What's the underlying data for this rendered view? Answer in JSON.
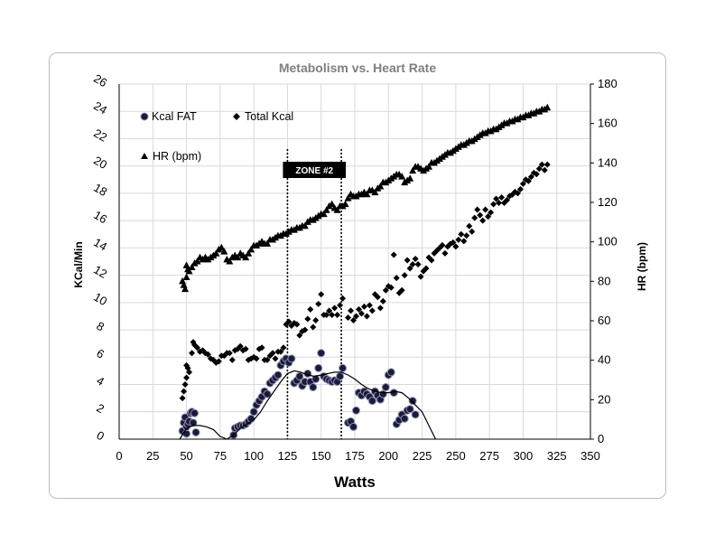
{
  "chart_data": {
    "type": "scatter",
    "title": "Metabolism vs. Heart Rate",
    "xlabel": "Watts",
    "ylabel_left": "KCal/Min",
    "ylabel_right": "HR (bpm)",
    "xlim": [
      0,
      350
    ],
    "x_ticks": [
      0,
      25,
      50,
      75,
      100,
      125,
      150,
      175,
      200,
      225,
      250,
      275,
      300,
      325,
      350
    ],
    "ylim_left": [
      0,
      26
    ],
    "y_ticks_left": [
      0,
      2,
      4,
      6,
      8,
      10,
      12,
      14,
      16,
      18,
      20,
      22,
      24,
      26
    ],
    "ylim_right": [
      0,
      180
    ],
    "y_ticks_right": [
      0,
      20,
      40,
      60,
      80,
      100,
      120,
      140,
      160,
      180
    ],
    "grid": true,
    "legend": "top-left",
    "zone": {
      "label": "ZONE #2",
      "x_start": 125,
      "x_end": 165
    },
    "series": [
      {
        "name": "Kcal FAT",
        "marker": "circle",
        "axis": "left",
        "color": "#1a1a3a",
        "x": [
          47,
          48,
          49,
          50,
          50,
          51,
          52,
          53,
          54,
          55,
          56,
          57,
          85,
          86,
          88,
          90,
          92,
          94,
          96,
          98,
          100,
          102,
          104,
          106,
          108,
          110,
          112,
          114,
          116,
          118,
          120,
          122,
          124,
          126,
          128,
          130,
          132,
          134,
          136,
          138,
          140,
          142,
          144,
          146,
          148,
          150,
          152,
          154,
          156,
          158,
          160,
          162,
          164,
          166,
          170,
          172,
          174,
          176,
          178,
          180,
          182,
          184,
          186,
          188,
          190,
          192,
          194,
          196,
          198,
          200,
          202,
          204,
          206,
          208,
          210,
          212,
          214,
          216,
          218,
          220
        ],
        "y": [
          0.6,
          1.2,
          1.6,
          0.4,
          0.9,
          1.1,
          1.3,
          1.9,
          2.0,
          1.2,
          1.9,
          0.5,
          0.3,
          0.8,
          0.9,
          1.0,
          1.0,
          1.1,
          1.3,
          1.5,
          2.0,
          2.5,
          2.8,
          3.1,
          3.5,
          3.3,
          4.1,
          4.3,
          4.5,
          4.7,
          5.4,
          5.7,
          5.9,
          5.6,
          5.9,
          4.1,
          4.3,
          4.6,
          3.9,
          4.2,
          4.8,
          4.2,
          3.8,
          4.4,
          5.2,
          6.3,
          4.6,
          4.4,
          4.3,
          4.2,
          4.3,
          4.2,
          4.6,
          5.2,
          1.2,
          1.3,
          0.9,
          2.1,
          3.4,
          3.2,
          3.5,
          3.3,
          3.1,
          2.8,
          3.5,
          3.2,
          2.9,
          3.3,
          3.8,
          4.7,
          4.9,
          3.4,
          1.1,
          1.4,
          1.8,
          1.5,
          2.1,
          2.2,
          2.8,
          1.8
        ]
      },
      {
        "name": "Total Kcal",
        "marker": "diamond",
        "axis": "left",
        "color": "#000000",
        "x": [
          47,
          48,
          49,
          50,
          50,
          51,
          52,
          54,
          55,
          56,
          58,
          60,
          62,
          64,
          66,
          68,
          70,
          72,
          74,
          76,
          78,
          80,
          82,
          84,
          86,
          88,
          90,
          92,
          94,
          96,
          98,
          100,
          102,
          104,
          106,
          108,
          110,
          112,
          114,
          116,
          118,
          120,
          122,
          124,
          126,
          128,
          130,
          132,
          134,
          136,
          138,
          140,
          142,
          144,
          146,
          148,
          150,
          152,
          154,
          156,
          158,
          160,
          162,
          164,
          166,
          170,
          172,
          174,
          176,
          178,
          180,
          182,
          184,
          186,
          188,
          190,
          192,
          194,
          196,
          198,
          200,
          202,
          204,
          206,
          208,
          210,
          212,
          214,
          216,
          218,
          220,
          222,
          224,
          226,
          228,
          230,
          232,
          234,
          236,
          238,
          240,
          242,
          244,
          246,
          248,
          250,
          252,
          254,
          256,
          258,
          260,
          262,
          264,
          266,
          268,
          270,
          272,
          274,
          276,
          278,
          280,
          282,
          284,
          286,
          288,
          290,
          292,
          294,
          296,
          298,
          300,
          302,
          304,
          306,
          308,
          310,
          312,
          314,
          316,
          318
        ],
        "y": [
          3.0,
          3.5,
          4.0,
          4.5,
          5.4,
          5.2,
          4.9,
          6.3,
          7.1,
          6.9,
          6.7,
          6.4,
          6.5,
          6.3,
          6.2,
          5.9,
          5.8,
          5.6,
          5.7,
          6.1,
          6.1,
          6.3,
          6.3,
          5.8,
          6.5,
          6.6,
          6.8,
          6.5,
          6.6,
          5.8,
          5.9,
          6.0,
          5.9,
          6.6,
          6.7,
          5.8,
          5.8,
          6.1,
          6.3,
          5.9,
          6.4,
          6.4,
          6.7,
          8.4,
          8.6,
          8.3,
          8.5,
          8.4,
          7.6,
          7.9,
          8.0,
          8.8,
          9.5,
          8.2,
          8.7,
          9.9,
          10.6,
          9.1,
          9.1,
          9.4,
          9.1,
          9.6,
          9.1,
          9.8,
          10.3,
          8.9,
          9.4,
          8.7,
          9.0,
          9.5,
          9.2,
          9.7,
          9.0,
          9.8,
          9.4,
          10.6,
          10.4,
          9.6,
          10.1,
          10.9,
          11.2,
          11.1,
          13.5,
          11.8,
          10.7,
          10.9,
          12.0,
          13.1,
          12.5,
          12.8,
          13.2,
          12.8,
          11.9,
          12.3,
          12.5,
          13.3,
          13.1,
          13.6,
          13.8,
          14.0,
          14.2,
          13.6,
          14.1,
          14.3,
          14.4,
          14.1,
          14.6,
          15.0,
          14.5,
          14.9,
          15.6,
          15.2,
          16.2,
          16.8,
          16.4,
          16.0,
          16.8,
          16.3,
          16.6,
          17.2,
          17.6,
          17.3,
          17.7,
          17.3,
          17.5,
          17.8,
          17.9,
          18.1,
          18.0,
          18.3,
          18.7,
          19.0,
          18.9,
          19.2,
          19.5,
          19.4,
          19.8,
          20.1,
          19.7,
          20.1
        ]
      },
      {
        "name": "HR (bpm)",
        "marker": "triangle",
        "axis": "right",
        "color": "#000000",
        "x": [
          47,
          48,
          49,
          50,
          50,
          51,
          52,
          54,
          56,
          58,
          60,
          62,
          64,
          66,
          68,
          70,
          72,
          74,
          76,
          78,
          80,
          82,
          84,
          86,
          88,
          90,
          92,
          94,
          96,
          98,
          100,
          102,
          104,
          106,
          108,
          110,
          112,
          114,
          116,
          118,
          120,
          122,
          124,
          126,
          128,
          130,
          132,
          134,
          136,
          138,
          140,
          142,
          144,
          146,
          148,
          150,
          152,
          154,
          156,
          158,
          160,
          162,
          164,
          166,
          168,
          170,
          172,
          174,
          176,
          178,
          180,
          182,
          184,
          186,
          188,
          190,
          192,
          194,
          196,
          198,
          200,
          202,
          204,
          206,
          208,
          210,
          212,
          214,
          216,
          218,
          220,
          222,
          224,
          226,
          228,
          230,
          232,
          234,
          236,
          238,
          240,
          242,
          244,
          246,
          248,
          250,
          252,
          254,
          256,
          258,
          260,
          262,
          264,
          266,
          268,
          270,
          272,
          274,
          276,
          278,
          280,
          282,
          284,
          286,
          288,
          290,
          292,
          294,
          296,
          298,
          300,
          302,
          304,
          306,
          308,
          310,
          312,
          314,
          316,
          318
        ],
        "y": [
          80,
          78,
          76,
          82,
          88,
          86,
          85,
          87,
          89,
          90,
          92,
          91,
          92,
          91,
          92,
          93,
          94,
          96,
          97,
          95,
          91,
          90,
          92,
          93,
          92,
          94,
          93,
          92,
          94,
          96,
          98,
          98,
          99,
          100,
          99,
          99,
          101,
          101,
          102,
          103,
          103,
          104,
          104,
          105,
          106,
          106,
          107,
          107,
          108,
          108,
          110,
          111,
          111,
          112,
          113,
          114,
          114,
          116,
          118,
          119,
          117,
          116,
          118,
          118,
          119,
          122,
          124,
          123,
          123,
          124,
          124,
          125,
          124,
          126,
          126,
          125,
          127,
          128,
          130,
          130,
          131,
          132,
          133,
          134,
          134,
          133,
          130,
          131,
          132,
          136,
          138,
          138,
          137,
          136,
          137,
          138,
          140,
          140,
          141,
          142,
          143,
          144,
          145,
          145,
          146,
          147,
          148,
          149,
          149,
          150,
          151,
          151,
          152,
          153,
          154,
          155,
          155,
          156,
          156,
          157,
          157,
          158,
          159,
          160,
          160,
          161,
          161,
          162,
          162,
          163,
          163,
          164,
          164,
          165,
          165,
          166,
          166,
          167,
          167,
          168
        ]
      },
      {
        "name": "",
        "type": "line",
        "axis": "left",
        "color": "#000000",
        "x": [
          45,
          50,
          55,
          60,
          65,
          70,
          75,
          80,
          85,
          90,
          95,
          100,
          105,
          110,
          115,
          120,
          125,
          130,
          135,
          140,
          145,
          150,
          155,
          160,
          165,
          170,
          175,
          180,
          185,
          190,
          195,
          200,
          205,
          210,
          215,
          220,
          225,
          230,
          235
        ],
        "y": [
          0.0,
          0.8,
          1.0,
          1.0,
          0.9,
          0.7,
          0.2,
          0.0,
          0.3,
          0.8,
          1.1,
          1.4,
          2.0,
          2.8,
          3.5,
          4.2,
          4.8,
          5.0,
          4.9,
          4.7,
          4.6,
          4.7,
          4.8,
          4.9,
          4.9,
          4.7,
          4.4,
          4.0,
          3.7,
          3.5,
          3.4,
          3.4,
          3.5,
          3.4,
          3.0,
          2.5,
          2.0,
          1.0,
          0.0
        ]
      }
    ]
  }
}
